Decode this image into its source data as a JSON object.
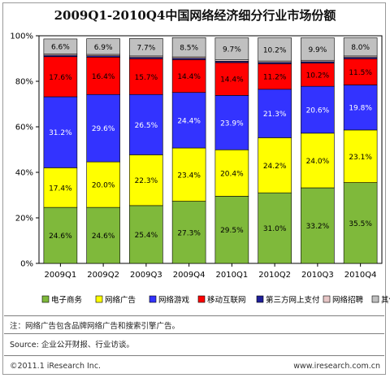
{
  "chart_data": {
    "type": "bar",
    "stacked": true,
    "percent": true,
    "title": "2009Q1-2010Q4中国网络经济细分行业市场份额",
    "categories": [
      "2009Q1",
      "2009Q2",
      "2009Q3",
      "2009Q4",
      "2010Q1",
      "2010Q2",
      "2010Q3",
      "2010Q4"
    ],
    "ylim": [
      0,
      100
    ],
    "yticks": [
      "0%",
      "20%",
      "40%",
      "60%",
      "80%",
      "100%"
    ],
    "grid": false,
    "legend_position": "bottom",
    "series": [
      {
        "name": "电子商务",
        "color": "#7fb93b",
        "values": [
          24.6,
          24.6,
          25.4,
          27.3,
          29.5,
          31.0,
          33.2,
          35.5
        ],
        "labels": [
          "24.6%",
          "24.6%",
          "25.4%",
          "27.3%",
          "29.5%",
          "31.0%",
          "33.2%",
          "35.5%"
        ]
      },
      {
        "name": "网络广告",
        "color": "#ffff00",
        "values": [
          17.4,
          20.0,
          22.3,
          23.4,
          20.4,
          24.2,
          24.0,
          23.1
        ],
        "labels": [
          "17.4%",
          "20.0%",
          "22.3%",
          "23.4%",
          "20.4%",
          "24.2%",
          "24.0%",
          "23.1%"
        ]
      },
      {
        "name": "网络游戏",
        "color": "#3333ff",
        "values": [
          31.2,
          29.6,
          26.5,
          24.4,
          23.9,
          21.3,
          20.6,
          19.8
        ],
        "labels": [
          "31.2%",
          "29.6%",
          "26.5%",
          "24.4%",
          "23.9%",
          "21.3%",
          "20.6%",
          "19.8%"
        ]
      },
      {
        "name": "移动互联网",
        "color": "#ff0000",
        "values": [
          17.6,
          16.4,
          15.7,
          14.4,
          14.4,
          11.2,
          10.2,
          11.5
        ],
        "labels": [
          "17.6%",
          "16.4%",
          "15.7%",
          "14.4%",
          "14.4%",
          "11.2%",
          "10.2%",
          "11.5%"
        ]
      },
      {
        "name": "第三方网上支付",
        "color": "#1f1f99",
        "values": [
          0.6,
          0.6,
          0.6,
          0.6,
          0.6,
          0.6,
          0.6,
          0.6
        ]
      },
      {
        "name": "网络招聘",
        "color": "#e6c6c6",
        "values": [
          0.6,
          0.6,
          0.6,
          0.6,
          0.6,
          0.6,
          0.6,
          0.6
        ]
      },
      {
        "name": "其他",
        "color": "#c0c0c0",
        "values": [
          6.6,
          6.9,
          7.7,
          8.5,
          9.7,
          10.2,
          9.9,
          8.0
        ],
        "labels": [
          "6.6%",
          "6.9%",
          "7.7%",
          "8.5%",
          "9.7%",
          "10.2%",
          "9.9%",
          "8.0%"
        ]
      }
    ]
  },
  "notes": {
    "note": "注：网络广告包含品牌网络广告和搜索引擎广告。",
    "source": "Source: 企业公开财报、行业访谈。",
    "copyright": "©2011.1 iResearch Inc.",
    "website": "www.iresearch.com.cn"
  }
}
